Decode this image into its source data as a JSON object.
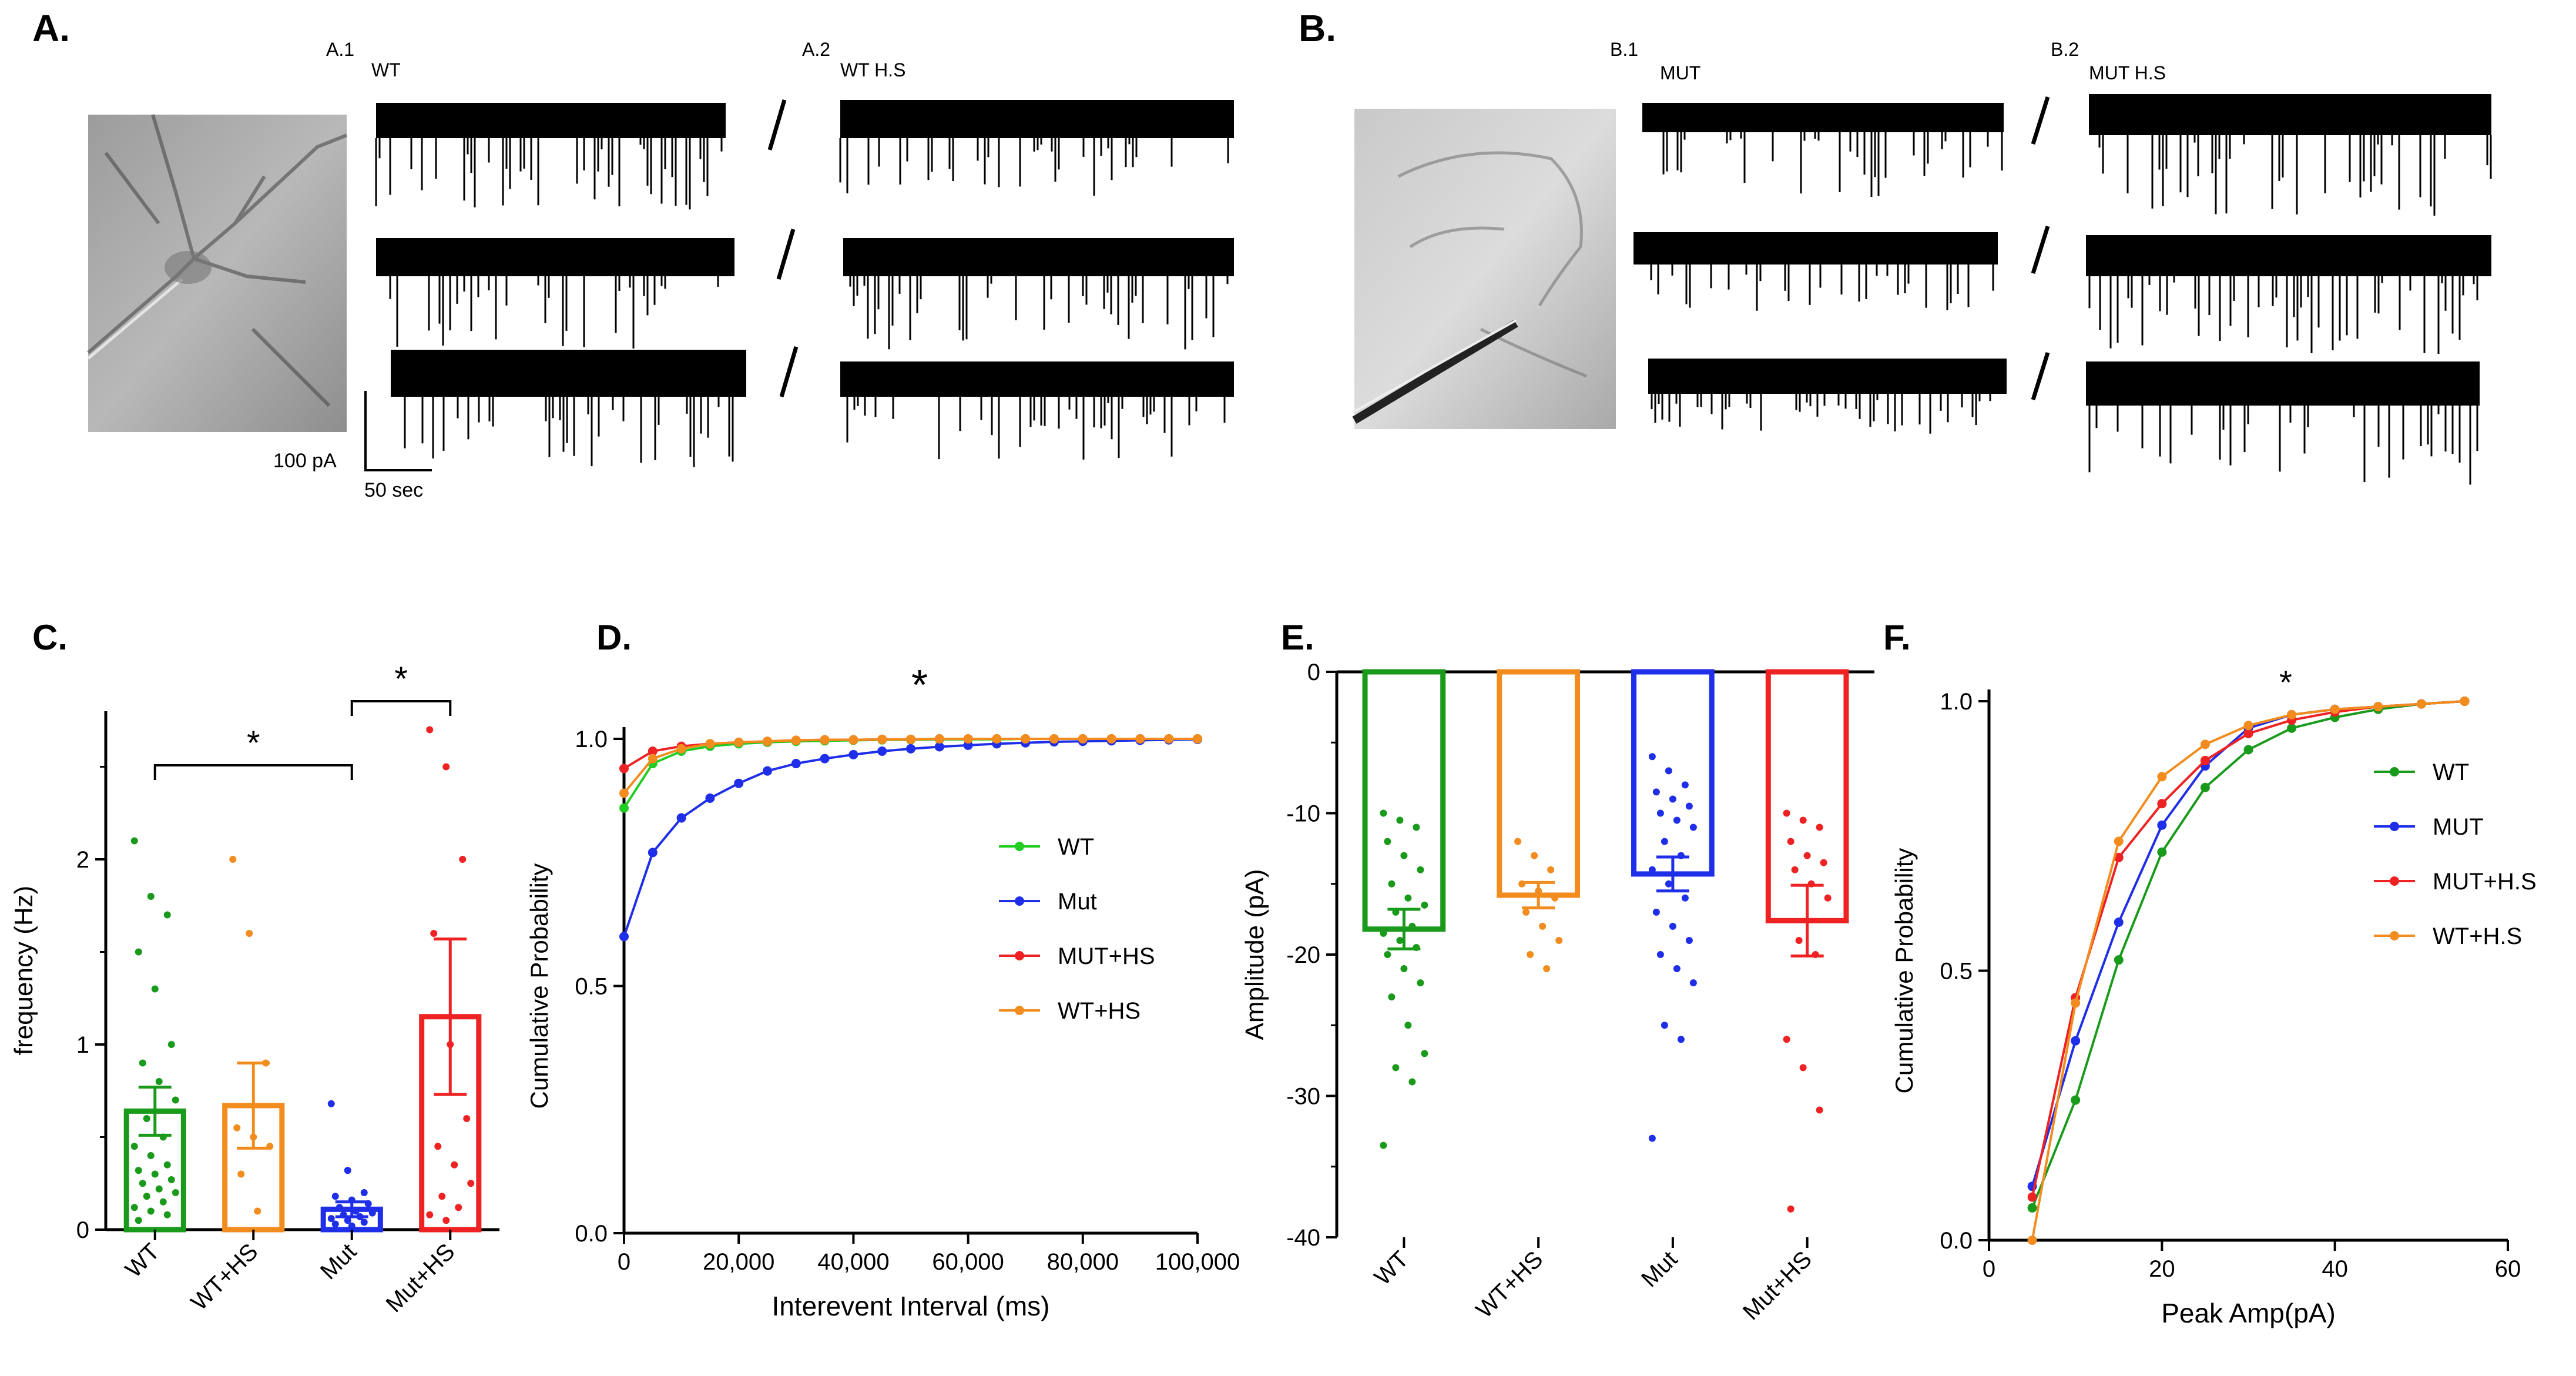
{
  "panels": {
    "A": {
      "label": "A.",
      "sub1": "A.1",
      "sub1_title": "WT",
      "sub2": "A.2",
      "sub2_title": "WT H.S",
      "scale_y": "100 pA",
      "scale_x": "50 sec"
    },
    "B": {
      "label": "B.",
      "sub1": "B.1",
      "sub1_title": "MUT",
      "sub2": "B.2",
      "sub2_title": "MUT H.S"
    },
    "C": {
      "label": "C."
    },
    "D": {
      "label": "D."
    },
    "E": {
      "label": "E."
    },
    "F": {
      "label": "F."
    }
  },
  "colors": {
    "WT": "#1a9a1a",
    "WTHS": "#f28c1e",
    "Mut": "#1f2ee8",
    "MutHS": "#ee2222",
    "D_WT": "#22cc22",
    "D_Mut": "#1f2ee8",
    "D_MUTHS": "#ee2222",
    "D_WTHS": "#f28c1e",
    "F_WT": "#1a9a1a",
    "F_MUT": "#1f2ee8",
    "F_MUTHS": "#ee2222",
    "F_WTHS": "#f28c1e"
  },
  "chart_data": [
    {
      "id": "C",
      "type": "bar",
      "ylabel": "frequency (Hz)",
      "ylim": [
        0,
        2.8
      ],
      "yticks": [
        "0",
        "1",
        "2"
      ],
      "yticks_val": [
        0,
        1,
        2
      ],
      "categories": [
        "WT",
        "WT+HS",
        "Mut",
        "Mut+HS"
      ],
      "values": [
        0.64,
        0.67,
        0.11,
        1.15
      ],
      "sem": [
        0.13,
        0.23,
        0.04,
        0.42
      ],
      "points": [
        [
          2.1,
          1.8,
          1.7,
          1.5,
          1.3,
          1.0,
          0.9,
          0.8,
          0.7,
          0.6,
          0.5,
          0.45,
          0.4,
          0.35,
          0.32,
          0.3,
          0.27,
          0.25,
          0.22,
          0.2,
          0.18,
          0.15,
          0.12,
          0.1,
          0.08,
          0.05
        ],
        [
          2.0,
          1.6,
          0.9,
          0.55,
          0.5,
          0.45,
          0.3,
          0.1
        ],
        [
          0.68,
          0.32,
          0.2,
          0.18,
          0.16,
          0.14,
          0.12,
          0.1,
          0.09,
          0.08,
          0.07,
          0.06,
          0.05,
          0.04,
          0.03,
          0.02
        ],
        [
          2.7,
          2.5,
          2.0,
          1.6,
          1.0,
          0.6,
          0.45,
          0.35,
          0.25,
          0.18,
          0.12,
          0.08,
          0.05
        ]
      ],
      "sig": [
        {
          "from": 0,
          "to": 2,
          "label": "*"
        },
        {
          "from": 2,
          "to": 3,
          "label": "*"
        }
      ]
    },
    {
      "id": "D",
      "type": "line",
      "title": "*",
      "xlabel": "Interevent Interval (ms)",
      "ylabel": "Cumulative Probability",
      "xlim": [
        0,
        100000
      ],
      "ylim": [
        0,
        1.0
      ],
      "xticks": [
        "0",
        "20,000",
        "40,000",
        "60,000",
        "80,000",
        "100,000"
      ],
      "xticks_val": [
        0,
        20000,
        40000,
        60000,
        80000,
        100000
      ],
      "yticks": [
        "0.0",
        "0.5",
        "1.0"
      ],
      "yticks_val": [
        0,
        0.5,
        1.0
      ],
      "x": [
        0,
        5000,
        10000,
        15000,
        20000,
        25000,
        30000,
        35000,
        40000,
        45000,
        50000,
        55000,
        60000,
        65000,
        70000,
        75000,
        80000,
        85000,
        90000,
        95000,
        100000
      ],
      "series": [
        {
          "name": "WT",
          "key": "D_WT",
          "values": [
            0.86,
            0.95,
            0.975,
            0.985,
            0.99,
            0.993,
            0.995,
            0.996,
            0.997,
            0.998,
            0.998,
            0.999,
            0.999,
            0.999,
            1,
            1,
            1,
            1,
            1,
            1,
            1
          ]
        },
        {
          "name": "Mut",
          "key": "D_Mut",
          "values": [
            0.6,
            0.77,
            0.84,
            0.88,
            0.91,
            0.935,
            0.95,
            0.96,
            0.968,
            0.975,
            0.98,
            0.984,
            0.987,
            0.99,
            0.992,
            0.994,
            0.995,
            0.996,
            0.997,
            0.998,
            0.999
          ]
        },
        {
          "name": "MUT+HS",
          "key": "D_MUTHS",
          "values": [
            0.94,
            0.975,
            0.985,
            0.99,
            0.993,
            0.995,
            0.997,
            0.998,
            0.998,
            0.999,
            0.999,
            1,
            1,
            1,
            1,
            1,
            1,
            1,
            1,
            1,
            1
          ]
        },
        {
          "name": "WT+HS",
          "key": "D_WTHS",
          "values": [
            0.89,
            0.96,
            0.98,
            0.99,
            0.993,
            0.995,
            0.997,
            0.998,
            0.998,
            0.999,
            0.999,
            1,
            1,
            1,
            1,
            1,
            1,
            1,
            1,
            1,
            1
          ]
        }
      ]
    },
    {
      "id": "E",
      "type": "bar",
      "ylabel": "Amplitude (pA)",
      "ylim": [
        -40,
        0
      ],
      "yticks": [
        "0",
        "-10",
        "-20",
        "-30",
        "-40"
      ],
      "yticks_val": [
        0,
        -10,
        -20,
        -30,
        -40
      ],
      "categories": [
        "WT",
        "WT+HS",
        "Mut",
        "Mut+HS"
      ],
      "values": [
        -18.2,
        -15.8,
        -14.3,
        -17.6
      ],
      "sem": [
        1.4,
        0.9,
        1.2,
        2.5
      ],
      "points": [
        [
          -10,
          -10.5,
          -11,
          -12,
          -13,
          -14,
          -15,
          -16,
          -16.5,
          -17,
          -18,
          -18.5,
          -19,
          -19.5,
          -20,
          -21,
          -22,
          -23,
          -25,
          -27,
          -28,
          -29,
          -33.5
        ],
        [
          -12,
          -13,
          -14,
          -15,
          -15.5,
          -16,
          -17,
          -18,
          -19,
          -20,
          -21
        ],
        [
          -6,
          -7,
          -8,
          -8.5,
          -9,
          -9.5,
          -10,
          -10.5,
          -11,
          -12,
          -13,
          -14,
          -15,
          -16,
          -17,
          -18,
          -19,
          -20,
          -21,
          -22,
          -25,
          -26,
          -33
        ],
        [
          -10,
          -10.5,
          -11,
          -12,
          -13,
          -13.5,
          -14,
          -15,
          -16,
          -19,
          -20,
          -26,
          -28,
          -31,
          -38
        ]
      ]
    },
    {
      "id": "F",
      "type": "line",
      "title": "*",
      "xlabel": "Peak Amp(pA)",
      "ylabel": "Cumulative Probability",
      "xlim": [
        0,
        60
      ],
      "ylim": [
        0,
        1.0
      ],
      "xticks": [
        "0",
        "20",
        "40",
        "60"
      ],
      "xticks_val": [
        0,
        20,
        40,
        60
      ],
      "yticks": [
        "0.0",
        "0.5",
        "1.0"
      ],
      "yticks_val": [
        0,
        0.5,
        1.0
      ],
      "x": [
        5,
        10,
        15,
        20,
        25,
        30,
        35,
        40,
        45,
        50,
        55
      ],
      "series": [
        {
          "name": "WT",
          "key": "F_WT",
          "values": [
            0.06,
            0.26,
            0.52,
            0.72,
            0.84,
            0.91,
            0.95,
            0.97,
            0.985,
            0.995,
            1.0
          ]
        },
        {
          "name": "MUT",
          "key": "F_MUT",
          "values": [
            0.1,
            0.37,
            0.59,
            0.77,
            0.88,
            0.95,
            0.975,
            0.985,
            0.99,
            0.995,
            1.0
          ]
        },
        {
          "name": "MUT+H.S",
          "key": "F_MUTHS",
          "values": [
            0.08,
            0.45,
            0.71,
            0.81,
            0.89,
            0.94,
            0.965,
            0.98,
            0.99,
            0.995,
            1.0
          ]
        },
        {
          "name": "WT+H.S",
          "key": "F_WTHS",
          "values": [
            0.0,
            0.44,
            0.74,
            0.86,
            0.92,
            0.955,
            0.975,
            0.985,
            0.99,
            0.995,
            1.0
          ]
        }
      ]
    }
  ]
}
